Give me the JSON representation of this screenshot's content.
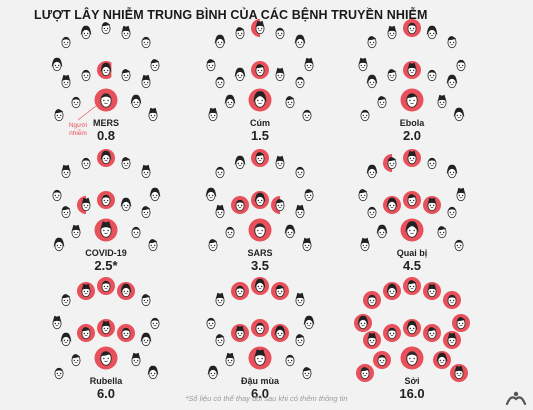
{
  "title": "LƯỢT LÂY NHIỄM TRUNG BÌNH CỦA CÁC BỆNH TRUYỀN NHIỄM",
  "patient_zero_label": "Người nhiễm",
  "footnote": "*Số liệu có thể thay đổi sau khi có thêm thông tin",
  "colors": {
    "infected": "#e8505b",
    "face": "#ffffff",
    "outline": "#222222",
    "background": "#f2f2f2"
  },
  "diseases": [
    {
      "name": "MERS",
      "value": "0.8",
      "r0": 0.8
    },
    {
      "name": "Cúm",
      "value": "1.5",
      "r0": 1.5
    },
    {
      "name": "Ebola",
      "value": "2.0",
      "r0": 2.0
    },
    {
      "name": "COVID-19",
      "value": "2.5*",
      "r0": 2.5
    },
    {
      "name": "SARS",
      "value": "3.5",
      "r0": 3.5
    },
    {
      "name": "Quai bị",
      "value": "4.5",
      "r0": 4.5
    },
    {
      "name": "Rubella",
      "value": "6.0",
      "r0": 6.0
    },
    {
      "name": "Đậu mùa",
      "value": "6.0",
      "r0": 6.0
    },
    {
      "name": "Sởi",
      "value": "16.0",
      "r0": 16.0
    }
  ]
}
